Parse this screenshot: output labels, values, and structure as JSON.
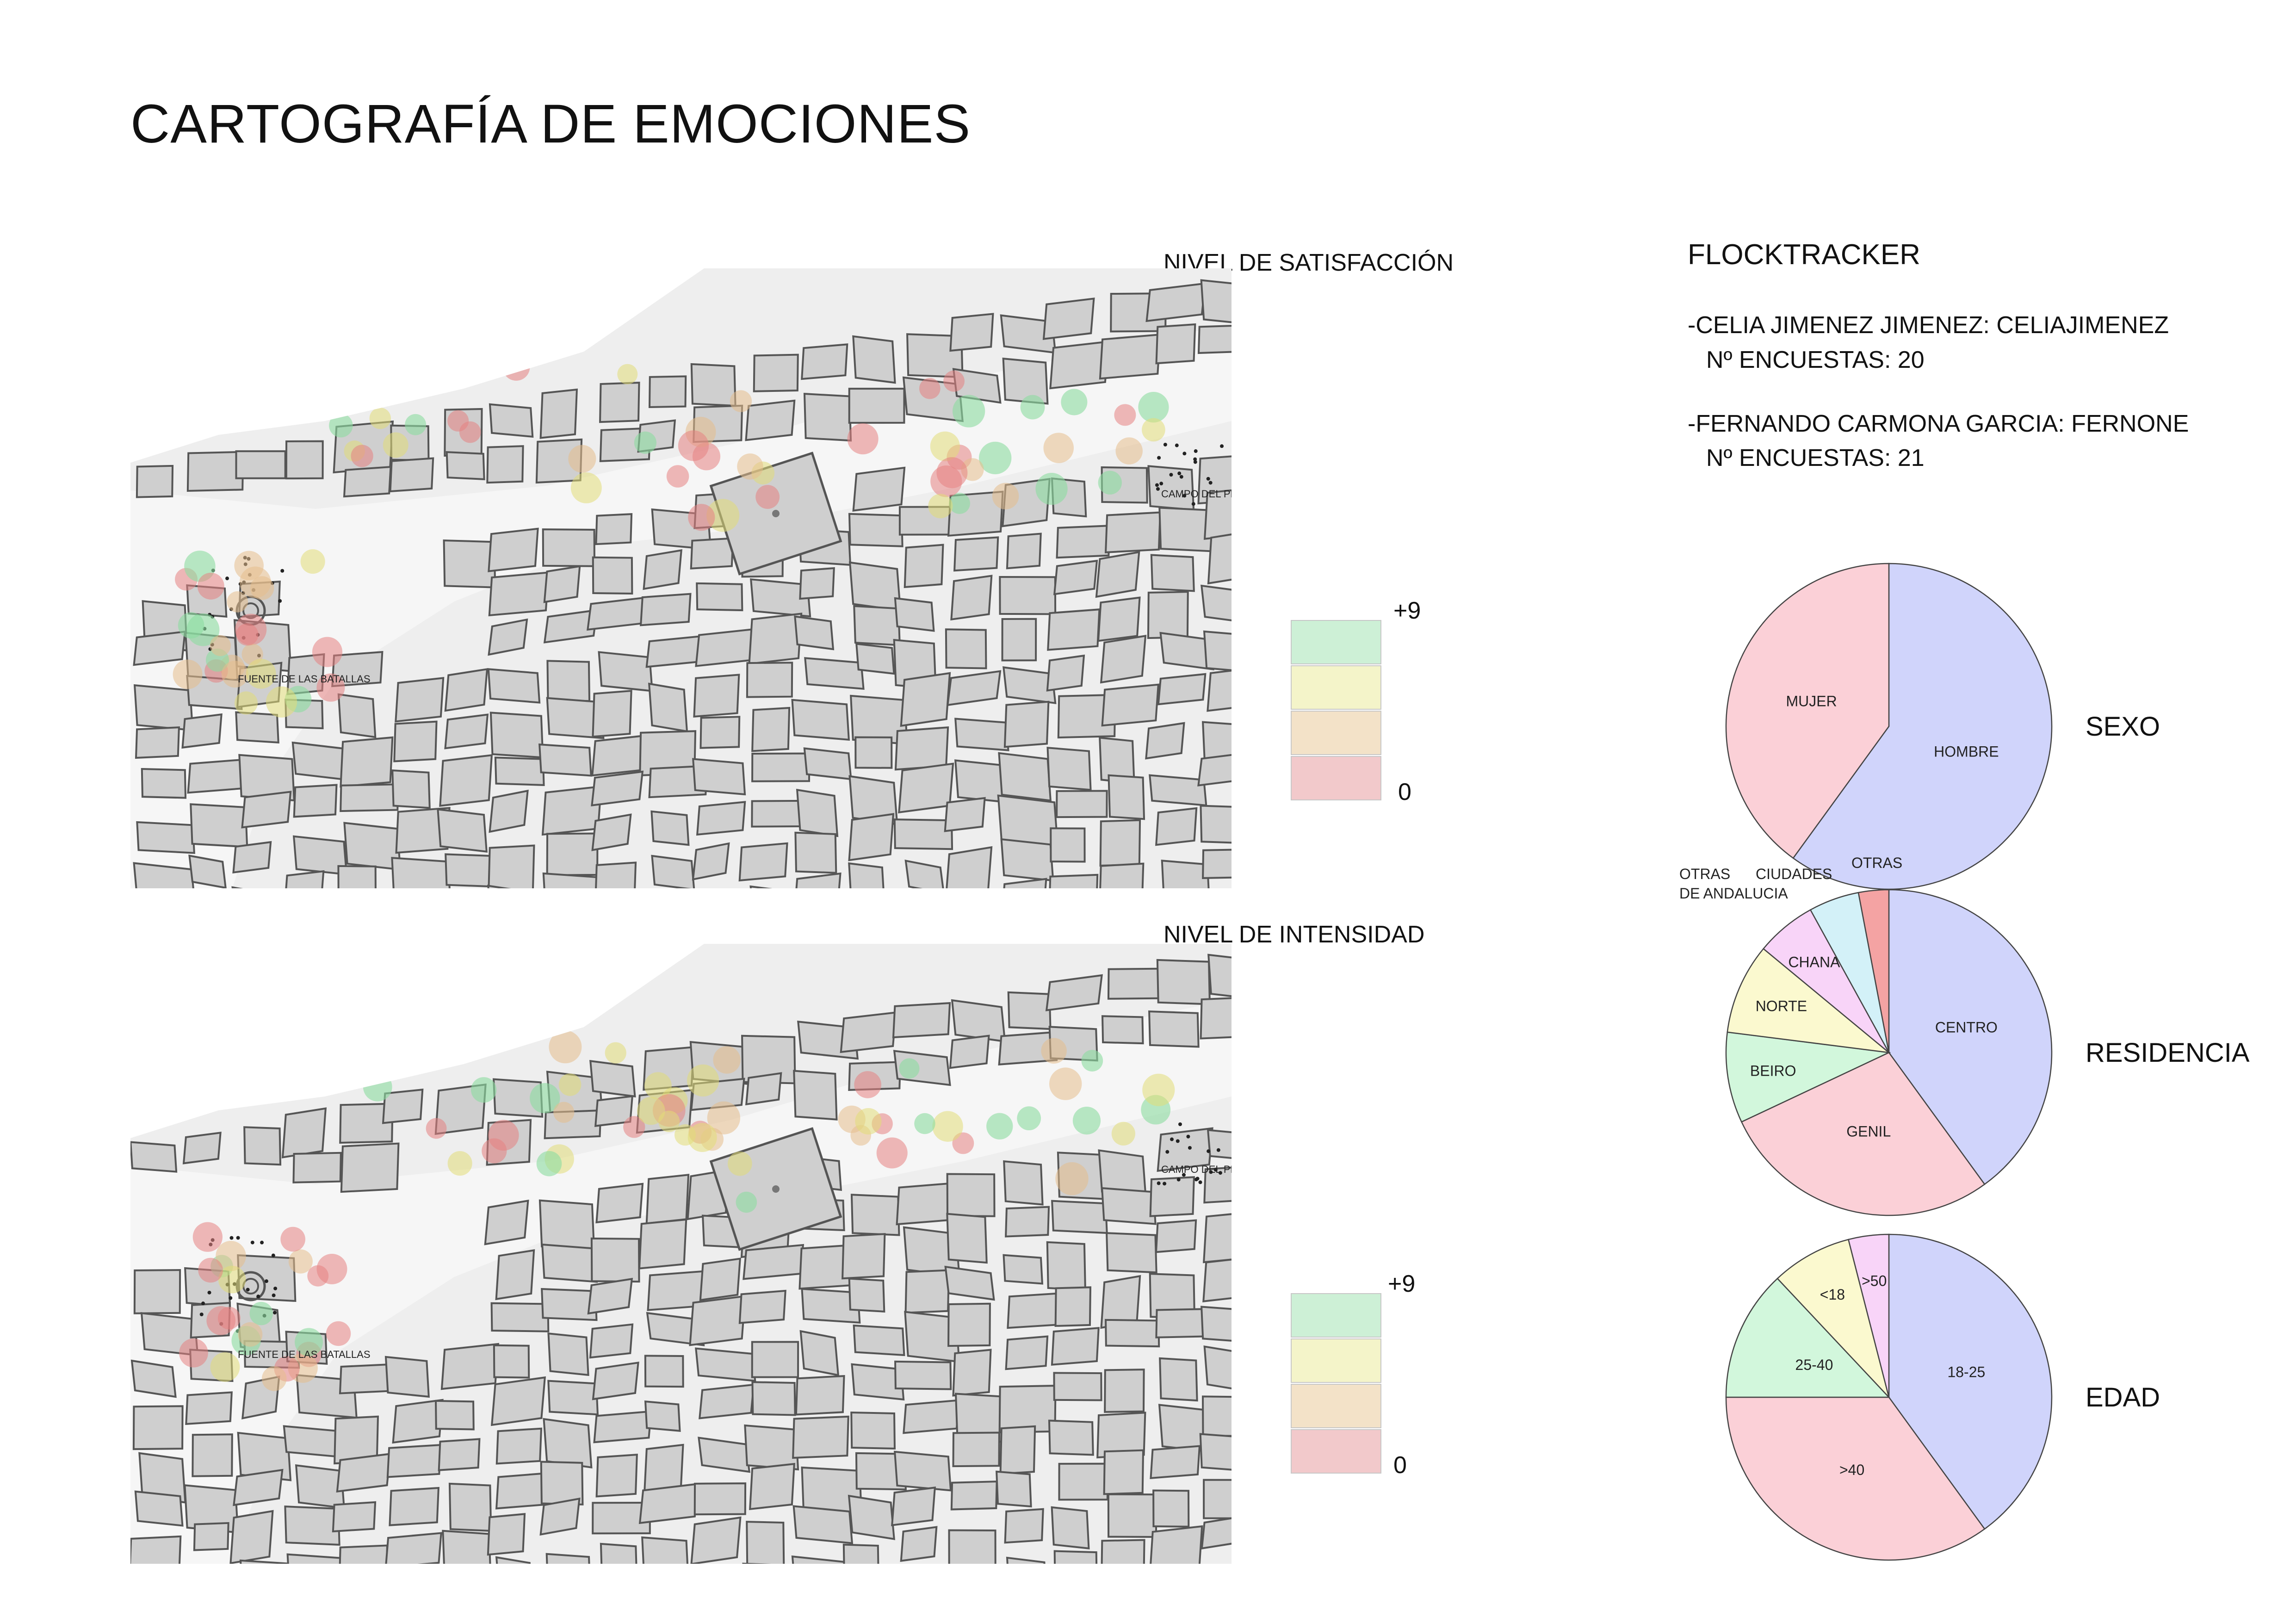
{
  "title": "CARTOGRAFÍA DE EMOCIONES",
  "maps": [
    {
      "heading": "NIVEL DE SATISFACCIÓN",
      "place_labels": [
        "FUENTE DE LAS BATALLAS",
        "CAMPO DEL PRINCIPE"
      ],
      "legend": {
        "max_label": "+9",
        "min_label": "0",
        "colors": [
          "#cdf0d6",
          "#f4f4c9",
          "#f3e2c8",
          "#f2c9cb"
        ]
      }
    },
    {
      "heading": "NIVEL DE INTENSIDAD",
      "place_labels": [
        "FUENTE DE LAS BATALLAS",
        "CAMPO DEL PRINCIPE"
      ],
      "legend": {
        "max_label": "+9",
        "min_label": "0",
        "colors": [
          "#cdf0d6",
          "#f4f4c9",
          "#f3e2c8",
          "#f2c9cb"
        ]
      }
    }
  ],
  "flocktracker": {
    "heading": "FLOCKTRACKER",
    "users": [
      {
        "line": "-CELIA JIMENEZ JIMENEZ: CELIAJIMENEZ",
        "count_line": "Nº ENCUESTAS: 20"
      },
      {
        "line": "-FERNANDO CARMONA GARCIA: FERNONE",
        "count_line": "Nº ENCUESTAS: 21"
      }
    ]
  },
  "chart_data": [
    {
      "type": "pie",
      "title": "SEXO",
      "slices": [
        {
          "label": "HOMBRE",
          "value": 60,
          "color": "#d0d4fb"
        },
        {
          "label": "MUJER",
          "value": 40,
          "color": "#fbd0d7"
        }
      ]
    },
    {
      "type": "pie",
      "title": "RESIDENCIA",
      "slices": [
        {
          "label": "CENTRO",
          "value": 40,
          "color": "#d0d4fb"
        },
        {
          "label": "GENIL",
          "value": 28,
          "color": "#fbd0d7"
        },
        {
          "label": "BEIRO",
          "value": 9,
          "color": "#d2f7dc"
        },
        {
          "label": "NORTE",
          "value": 9,
          "color": "#fbf9cf"
        },
        {
          "label": "CHANA",
          "value": 6,
          "color": "#f8d4f8"
        },
        {
          "label": "OTRAS CIUDADES",
          "value": 5,
          "color": "#d3f1f8"
        },
        {
          "label": "OTRAS",
          "value": 3,
          "color": "#f4a3a3"
        }
      ],
      "outside_labels": [
        "OTRAS",
        "CIUDADES",
        "OTRAS",
        "DE ANDALUCIA"
      ]
    },
    {
      "type": "pie",
      "title": "EDAD",
      "slices": [
        {
          "label": "18-25",
          "value": 40,
          "color": "#d0d4fb"
        },
        {
          "label": ">40",
          "value": 35,
          "color": "#fbd0d7"
        },
        {
          "label": "25-40",
          "value": 13,
          "color": "#d2f7dc"
        },
        {
          "label": "<18",
          "value": 8,
          "color": "#fbf9cf"
        },
        {
          "label": ">50",
          "value": 4,
          "color": "#f8d4f8"
        }
      ]
    }
  ]
}
